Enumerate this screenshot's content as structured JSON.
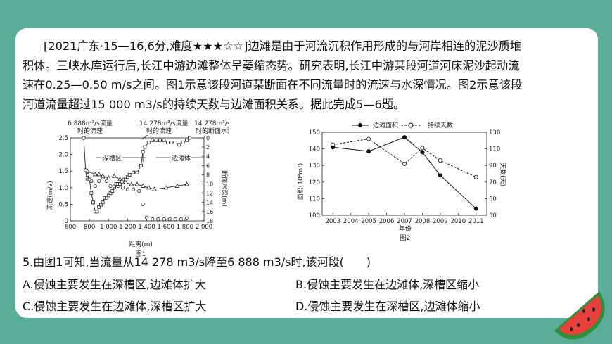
{
  "passage": {
    "lines": [
      "[2021广东·15—16,6分,难度★★★☆☆]边滩是由于河流沉积作用形成的与河岸相连的泥沙质堆",
      "积体。三峡水库运行后,长江中游边滩整体呈萎缩态势。研究表明,长江中游某段河道河床泥沙起动流",
      "速在0.25—0.50 m/s之间。图1示意该段河道某断面在不同流量时的流速与水深情况。图2示意该段",
      "河道流量超过15 000 m3/s的持续天数与边滩面积关系。据此完成5—6题。"
    ]
  },
  "fig1": {
    "legend_low": [
      "6 888m³/s流量",
      "时的流速"
    ],
    "legend_high": [
      "14 278m³/s流量",
      "时的流速"
    ],
    "legend_depth": [
      "14 278m³/s流量",
      "时的断面水深"
    ],
    "zone_left": "深槽区",
    "zone_right": "边滩体",
    "ylabel_left": "流速(m/s)",
    "ylabel_right": "断面水深(m)",
    "xlabel": "距离(m)",
    "caption": "图1",
    "xticks": [
      "600",
      "800",
      "1 000",
      "1 200",
      "1 400",
      "1 600",
      "1 800",
      "2 000"
    ],
    "yticks_left": [
      "0",
      "0.5",
      "1.0",
      "1.5",
      "2.0",
      "2.5"
    ],
    "yticks_right": [
      "0",
      "2",
      "4",
      "6",
      "8",
      "10",
      "12",
      "14",
      "16",
      "18"
    ]
  },
  "fig2": {
    "legend_area": "边滩面积",
    "legend_days": "持续天数",
    "ylabel_left": "面积(10⁴m²)",
    "ylabel_right": "天数(天)",
    "xlabel": "年份",
    "caption": "图2",
    "yticks_left": [
      "100",
      "110",
      "120",
      "130",
      "140",
      "150"
    ],
    "yticks_right": [
      "30",
      "50",
      "70",
      "90",
      "110",
      "130"
    ]
  },
  "chart_data": [
    {
      "type": "line",
      "xlabel": "距离(m)",
      "ylabel": "流速(m/s)",
      "y2label": "断面水深(m)",
      "xlim": [
        600,
        2000
      ],
      "ylim": [
        0,
        2.5
      ],
      "y2lim": [
        0,
        18
      ],
      "series": [
        {
          "name": "6 888m³/s流量时的流速",
          "axis": "left",
          "x": [
            780,
            820,
            860,
            900,
            940,
            980,
            1020,
            1060,
            1100,
            1150,
            1200,
            1260,
            1320,
            1360,
            1400,
            1460,
            1520,
            1580,
            1640,
            1700,
            1760,
            1820
          ],
          "y": [
            1.25,
            1.2,
            1.05,
            1.2,
            1.3,
            1.2,
            1.05,
            1.0,
            1.05,
            1.0,
            0.95,
            0.95,
            0.9,
            0.5,
            0.1,
            0.05,
            0.05,
            0.05,
            0.05,
            0.05,
            0.05,
            0.08
          ]
        },
        {
          "name": "14 278m³/s流量时的流速",
          "axis": "left",
          "x": [
            780,
            860,
            900,
            940,
            1000,
            1060,
            1120,
            1180,
            1240,
            1300,
            1360,
            1420,
            1480,
            1600,
            1720,
            1820
          ],
          "y": [
            1.5,
            1.4,
            1.4,
            1.35,
            1.3,
            1.35,
            1.25,
            1.15,
            1.1,
            1.1,
            1.05,
            1.0,
            0.95,
            1.0,
            1.05,
            1.1
          ]
        },
        {
          "name": "14 278m³/s流量时的断面水深",
          "axis": "right",
          "x": [
            740,
            760,
            780,
            800,
            820,
            840,
            860,
            880,
            900,
            920,
            940,
            960,
            980,
            1000,
            1020,
            1040,
            1060,
            1080,
            1100,
            1120,
            1140,
            1160,
            1180,
            1200,
            1220,
            1260,
            1300,
            1340,
            1360,
            1380,
            1420,
            1460,
            1500,
            1540,
            1580,
            1620,
            1660,
            1700,
            1740,
            1780,
            1820,
            1850
          ],
          "y": [
            0,
            7,
            8,
            9,
            12,
            14,
            16,
            16,
            15,
            14.5,
            14,
            13,
            13,
            12.5,
            12,
            11.5,
            10.5,
            10,
            10,
            10,
            9.5,
            9,
            9,
            8.5,
            8,
            7.5,
            7.5,
            6,
            3,
            2,
            1,
            0.5,
            0.5,
            0.5,
            0.5,
            1,
            1,
            1,
            1.5,
            1,
            0.5,
            0
          ]
        }
      ]
    },
    {
      "type": "line",
      "xlabel": "年份",
      "ylabel": "面积(10⁴m²)",
      "y2label": "天数(天)",
      "categories": [
        "2003",
        "2004",
        "2005",
        "2006",
        "2007",
        "2008",
        "2009",
        "2010",
        "2011"
      ],
      "ylim": [
        100,
        150
      ],
      "y2lim": [
        30,
        130
      ],
      "series": [
        {
          "name": "边滩面积",
          "axis": "left",
          "x": [
            2003,
            2005,
            2007,
            2008,
            2009,
            2011
          ],
          "y": [
            141,
            138.5,
            147,
            138,
            124,
            104
          ]
        },
        {
          "name": "持续天数",
          "axis": "right",
          "x": [
            2003,
            2005,
            2007,
            2008,
            2009,
            2011
          ],
          "y": [
            115,
            122,
            92,
            111,
            96,
            76
          ]
        }
      ]
    }
  ],
  "question": {
    "stem": "5.由图1可知,当流量从14 278 m3/s降至6 888 m3/s时,该河段(　　)",
    "option_a": "A.侵蚀主要发生在深槽区,边滩体扩大",
    "option_b": "B.侵蚀主要发生在边滩体,深槽区缩小",
    "option_c": "C.侵蚀主要发生在边滩体,深槽区扩大",
    "option_d": "D.侵蚀主要发生在深槽区,边滩体缩小"
  },
  "decoration": {
    "icon": "watermelon-slice-icon",
    "bg_color": "#5aae97",
    "rind_color": "#2e8f3c",
    "flesh_color": "#e8403a"
  }
}
